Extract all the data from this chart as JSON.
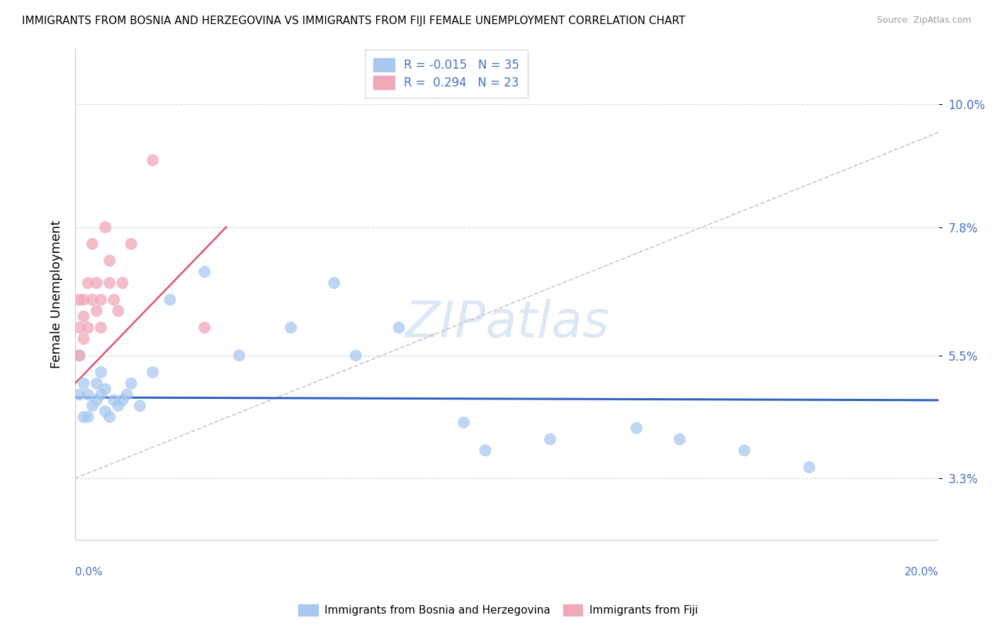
{
  "title": "IMMIGRANTS FROM BOSNIA AND HERZEGOVINA VS IMMIGRANTS FROM FIJI FEMALE UNEMPLOYMENT CORRELATION CHART",
  "source": "Source: ZipAtlas.com",
  "ylabel": "Female Unemployment",
  "yticks": [
    0.033,
    0.055,
    0.078,
    0.1
  ],
  "ytick_labels": [
    "3.3%",
    "5.5%",
    "7.8%",
    "10.0%"
  ],
  "xlim": [
    0.0,
    0.2
  ],
  "ylim": [
    0.022,
    0.11
  ],
  "legend_entry1": "R = -0.015   N = 35",
  "legend_entry2": "R =  0.294   N = 23",
  "legend_label1": "Immigrants from Bosnia and Herzegovina",
  "legend_label2": "Immigrants from Fiji",
  "color_bosnia": "#a8c8f0",
  "color_fiji": "#f0a8b8",
  "color_trend_bosnia": "#3060c0",
  "color_trend_fiji": "#e05070",
  "color_grid": "#d8d8d8",
  "color_ref_line": "#c8c8c8",
  "bosnia_x": [
    0.001,
    0.001,
    0.002,
    0.002,
    0.003,
    0.003,
    0.004,
    0.005,
    0.005,
    0.006,
    0.006,
    0.007,
    0.007,
    0.008,
    0.009,
    0.01,
    0.011,
    0.012,
    0.013,
    0.015,
    0.018,
    0.022,
    0.03,
    0.038,
    0.05,
    0.06,
    0.065,
    0.075,
    0.09,
    0.095,
    0.11,
    0.13,
    0.14,
    0.155,
    0.17
  ],
  "bosnia_y": [
    0.055,
    0.048,
    0.05,
    0.044,
    0.048,
    0.044,
    0.046,
    0.047,
    0.05,
    0.048,
    0.052,
    0.045,
    0.049,
    0.044,
    0.047,
    0.046,
    0.047,
    0.048,
    0.05,
    0.046,
    0.052,
    0.065,
    0.07,
    0.055,
    0.06,
    0.068,
    0.055,
    0.06,
    0.043,
    0.038,
    0.04,
    0.042,
    0.04,
    0.038,
    0.035
  ],
  "fiji_x": [
    0.001,
    0.001,
    0.001,
    0.002,
    0.002,
    0.002,
    0.003,
    0.003,
    0.004,
    0.004,
    0.005,
    0.005,
    0.006,
    0.006,
    0.007,
    0.008,
    0.008,
    0.009,
    0.01,
    0.011,
    0.013,
    0.018,
    0.03
  ],
  "fiji_y": [
    0.055,
    0.06,
    0.065,
    0.058,
    0.062,
    0.065,
    0.06,
    0.068,
    0.065,
    0.075,
    0.063,
    0.068,
    0.06,
    0.065,
    0.078,
    0.068,
    0.072,
    0.065,
    0.063,
    0.068,
    0.075,
    0.09,
    0.06
  ],
  "trend_bosnia_y0": 0.0475,
  "trend_bosnia_y1": 0.047,
  "trend_fiji_x0": 0.0,
  "trend_fiji_y0": 0.05,
  "trend_fiji_x1": 0.035,
  "trend_fiji_y1": 0.078,
  "ref_line_x": [
    0.0,
    0.2
  ],
  "ref_line_y": [
    0.033,
    0.095
  ],
  "watermark": "ZIPatlas",
  "watermark_color": "#dce8f5"
}
